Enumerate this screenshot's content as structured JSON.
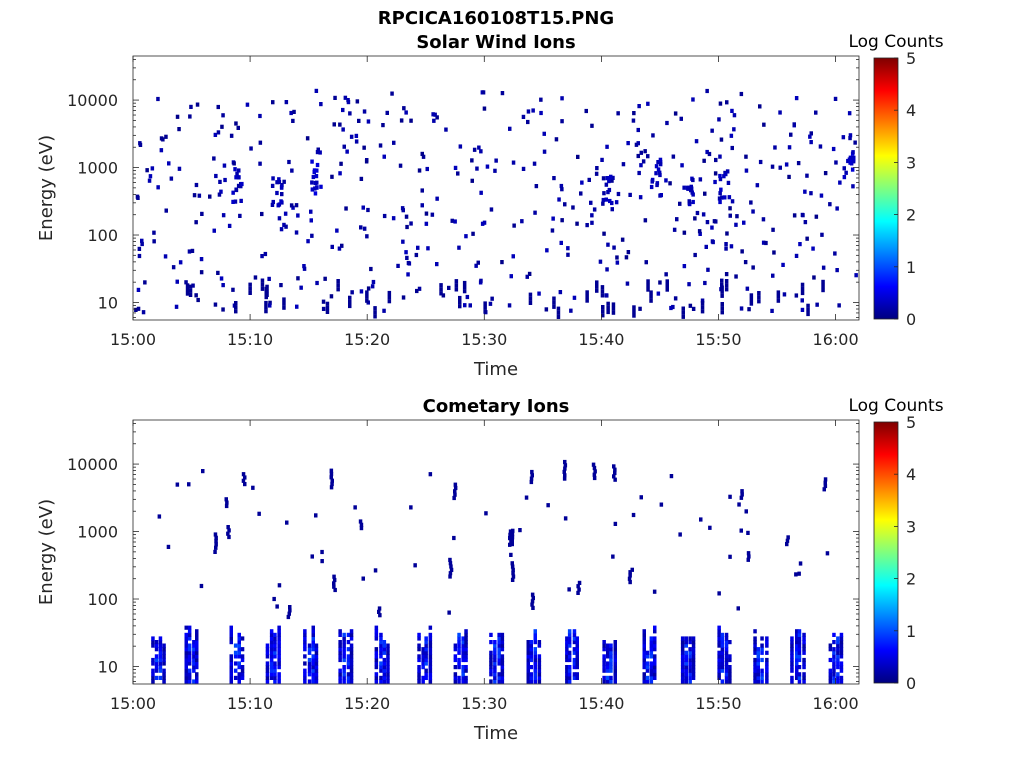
{
  "figure": {
    "title": "RPCICA160108T15.PNG"
  },
  "colormap": {
    "name": "jet",
    "stops": [
      "#00007f",
      "#0000ff",
      "#007fff",
      "#00ffff",
      "#7fff7f",
      "#ffff00",
      "#ff7f00",
      "#ff0000",
      "#7f0000"
    ]
  },
  "chart_data": [
    {
      "type": "heatmap",
      "title": "Solar Wind Ions",
      "xlabel": "Time",
      "ylabel": "Energy (eV)",
      "x_tick_labels": [
        "15:00",
        "15:10",
        "15:20",
        "15:30",
        "15:40",
        "15:50",
        "16:00"
      ],
      "x_range_minutes": [
        0,
        62
      ],
      "y_scale": "log",
      "y_range": [
        5.5,
        45000
      ],
      "y_ticks": [
        10,
        100,
        1000,
        10000
      ],
      "y_tick_labels": [
        "10",
        "100",
        "1000",
        "10000"
      ],
      "colorbar": {
        "label": "Log Counts",
        "range": [
          0,
          5
        ],
        "tick_labels": [
          "0",
          "1",
          "2",
          "3",
          "4",
          "5"
        ]
      },
      "grid": false,
      "description_of_data": "sparse scattered dots of ~0-0.5 log counts across all energies 6-15000 eV",
      "clusters": [
        {
          "time_min": 8.9,
          "energy_eV": 550,
          "log_counts": 0.3
        },
        {
          "time_min": 12.3,
          "energy_eV": 480,
          "log_counts": 0.3
        },
        {
          "time_min": 15.7,
          "energy_eV": 700,
          "log_counts": 0.4
        },
        {
          "time_min": 40.6,
          "energy_eV": 420,
          "log_counts": 0.3
        },
        {
          "time_min": 44.7,
          "energy_eV": 800,
          "log_counts": 0.3
        },
        {
          "time_min": 47.5,
          "energy_eV": 500,
          "log_counts": 0.3
        },
        {
          "time_min": 50.5,
          "energy_eV": 500,
          "log_counts": 0.3
        },
        {
          "time_min": 61.2,
          "energy_eV": 1100,
          "log_counts": 0.4
        }
      ]
    },
    {
      "type": "heatmap",
      "title": "Cometary Ions",
      "xlabel": "Time",
      "ylabel": "Energy (eV)",
      "x_tick_labels": [
        "15:00",
        "15:10",
        "15:20",
        "15:30",
        "15:40",
        "15:50",
        "16:00"
      ],
      "x_range_minutes": [
        0,
        62
      ],
      "y_scale": "log",
      "y_range": [
        5.5,
        45000
      ],
      "y_ticks": [
        10,
        100,
        1000,
        10000
      ],
      "y_tick_labels": [
        "10",
        "100",
        "1000",
        "10000"
      ],
      "colorbar": {
        "label": "Log Counts",
        "range": [
          0,
          5
        ],
        "tick_labels": [
          "0",
          "1",
          "2",
          "3",
          "4",
          "5"
        ]
      },
      "grid": false,
      "description_of_data": "periodic low-energy (6-40 eV) bursts roughly every 3.3 minutes, peak ~1 log count; sparse high-energy dots",
      "bursts_time_min": [
        2.2,
        5.0,
        8.9,
        12.0,
        15.2,
        18.2,
        21.3,
        24.9,
        28.0,
        31.1,
        34.2,
        37.5,
        40.7,
        44.1,
        47.4,
        50.5,
        53.6,
        56.8,
        60.0
      ],
      "burst_energy_eV": [
        6,
        40
      ],
      "burst_peak_log_counts": 1.0
    }
  ]
}
